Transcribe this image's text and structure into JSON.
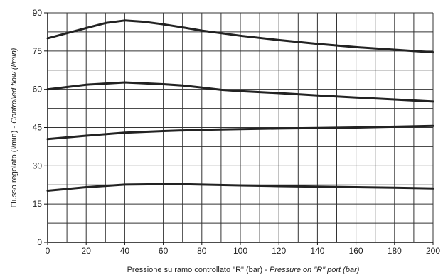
{
  "chart_data": {
    "type": "line",
    "title": "",
    "xlabel_main": "Pressione su ramo controllato \"R\" (bar) - ",
    "xlabel_italic": "Pressure on \"R\" port (bar)",
    "ylabel_main": "Flusso regolato (l/min) - ",
    "ylabel_italic": "Controlled flow (l/min)",
    "xlim": [
      0,
      200
    ],
    "ylim": [
      0,
      90
    ],
    "xticks": [
      0,
      20,
      40,
      60,
      80,
      100,
      120,
      140,
      160,
      180,
      200
    ],
    "yticks": [
      0,
      15,
      30,
      45,
      60,
      75,
      90
    ],
    "grid": true,
    "legend": "none",
    "line_color": "#222222",
    "series": [
      {
        "x": [
          0,
          10,
          20,
          30,
          40,
          50,
          60,
          70,
          80,
          90,
          100,
          120,
          140,
          160,
          180,
          200
        ],
        "y": [
          80,
          82,
          84,
          86,
          87,
          86.5,
          85.5,
          84.3,
          83,
          82,
          81,
          79.3,
          77.8,
          76.5,
          75.5,
          74.5
        ]
      },
      {
        "x": [
          0,
          20,
          40,
          60,
          70,
          80,
          90,
          100,
          120,
          140,
          160,
          180,
          200
        ],
        "y": [
          60,
          61.8,
          62.7,
          62,
          61.5,
          60.7,
          59.8,
          59.3,
          58.5,
          57.6,
          56.8,
          56,
          55.2
        ]
      },
      {
        "x": [
          0,
          20,
          40,
          60,
          80,
          100,
          120,
          140,
          160,
          180,
          200
        ],
        "y": [
          40.5,
          41.8,
          43,
          43.6,
          44.1,
          44.4,
          44.6,
          44.8,
          45,
          45.3,
          45.6
        ]
      },
      {
        "x": [
          0,
          20,
          40,
          60,
          70,
          80,
          100,
          120,
          140,
          160,
          180,
          200
        ],
        "y": [
          20.2,
          21.6,
          22.6,
          22.8,
          22.8,
          22.6,
          22.3,
          22,
          21.8,
          21.6,
          21.4,
          21.1
        ]
      }
    ]
  }
}
